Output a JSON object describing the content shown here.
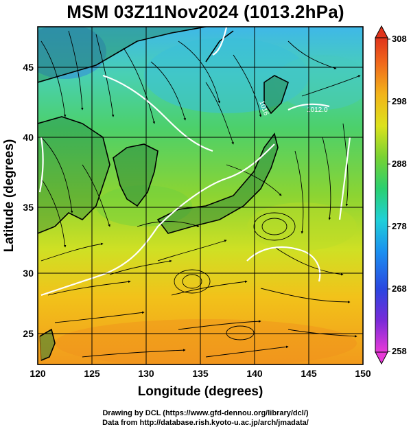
{
  "title": "MSM 03Z11Nov2024 (1013.2hPa)",
  "x_axis": {
    "label": "Longitude (degrees)",
    "range": [
      120,
      150
    ],
    "ticks": [
      "120",
      "125",
      "130",
      "135",
      "140",
      "145",
      "150"
    ]
  },
  "y_axis": {
    "label": "Latitude  (degrees)",
    "range": [
      22.5,
      47.5
    ],
    "ticks": [
      "25",
      "30",
      "35",
      "40",
      "45"
    ]
  },
  "colorbar": {
    "range": [
      258,
      308
    ],
    "ticks": [
      "258",
      "268",
      "278",
      "288",
      "298",
      "308"
    ]
  },
  "contour_labels": [
    "1012.0",
    "1016"
  ],
  "credits": {
    "line1": "Drawing by DCL (https://www.gfd-dennou.org/library/dcl/)",
    "line2": "Data from http://database.rish.kyoto-u.ac.jp/arch/jmadata/"
  }
}
